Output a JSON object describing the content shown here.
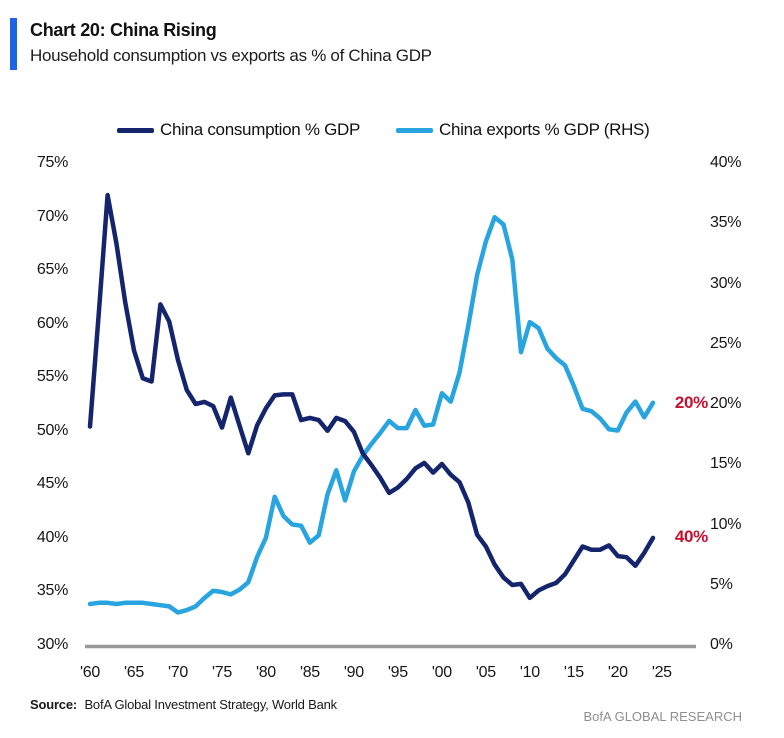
{
  "header": {
    "title": "Chart 20: China Rising",
    "subtitle": "Household consumption vs exports as % of China GDP",
    "accent_color": "#1b63e0"
  },
  "legend": {
    "items": [
      {
        "label": "China consumption % GDP",
        "color": "#15256d"
      },
      {
        "label": "China exports % GDP (RHS)",
        "color": "#28a4e0"
      }
    ]
  },
  "chart_data": {
    "type": "line",
    "title": "Chart 20: China Rising",
    "subtitle": "Household consumption vs exports as % of China GDP",
    "x": [
      1960,
      1961,
      1962,
      1963,
      1964,
      1965,
      1966,
      1967,
      1968,
      1969,
      1970,
      1971,
      1972,
      1973,
      1974,
      1975,
      1976,
      1977,
      1978,
      1979,
      1980,
      1981,
      1982,
      1983,
      1984,
      1985,
      1986,
      1987,
      1988,
      1989,
      1990,
      1991,
      1992,
      1993,
      1994,
      1995,
      1996,
      1997,
      1998,
      1999,
      2000,
      2001,
      2002,
      2003,
      2004,
      2005,
      2006,
      2007,
      2008,
      2009,
      2010,
      2011,
      2012,
      2013,
      2014,
      2015,
      2016,
      2017,
      2018,
      2019,
      2020,
      2021,
      2022,
      2023,
      2024
    ],
    "x_tick_years": [
      1960,
      1965,
      1970,
      1975,
      1980,
      1985,
      1990,
      1995,
      2000,
      2005,
      2010,
      2015,
      2020,
      2025
    ],
    "x_tick_labels": [
      "'60",
      "'65",
      "'70",
      "'75",
      "'80",
      "'85",
      "'90",
      "'95",
      "'00",
      "'05",
      "'10",
      "'15",
      "'20",
      "'25"
    ],
    "left_axis": {
      "ticks": [
        75,
        70,
        65,
        60,
        55,
        50,
        45,
        40,
        35,
        30
      ],
      "ylim": [
        30,
        75
      ],
      "unit": "%"
    },
    "right_axis": {
      "ticks": [
        40,
        35,
        30,
        25,
        20,
        15,
        10,
        5,
        0
      ],
      "ylim": [
        0,
        40
      ],
      "unit": "%"
    },
    "grid": false,
    "legend_position": "top",
    "series": [
      {
        "name": "China consumption % GDP",
        "axis": "left",
        "color": "#15256d",
        "values": [
          50.4,
          61.0,
          72.0,
          67.5,
          62.0,
          57.5,
          54.9,
          54.6,
          61.8,
          60.2,
          56.6,
          53.8,
          52.5,
          52.7,
          52.3,
          50.3,
          53.1,
          50.5,
          47.9,
          50.5,
          52.1,
          53.3,
          53.4,
          53.4,
          51.0,
          51.2,
          51.0,
          50.0,
          51.2,
          50.9,
          49.9,
          47.9,
          46.8,
          45.6,
          44.2,
          44.7,
          45.5,
          46.5,
          47.0,
          46.1,
          46.9,
          45.9,
          45.2,
          43.3,
          40.3,
          39.2,
          37.5,
          36.3,
          35.6,
          35.7,
          34.4,
          35.1,
          35.5,
          35.8,
          36.6,
          37.9,
          39.2,
          38.9,
          38.9,
          39.3,
          38.3,
          38.2,
          37.4,
          38.6,
          40.0
        ]
      },
      {
        "name": "China exports % GDP (RHS)",
        "axis": "right",
        "color": "#28a4e0",
        "values": [
          3.4,
          3.5,
          3.5,
          3.4,
          3.5,
          3.5,
          3.5,
          3.4,
          3.3,
          3.2,
          2.7,
          2.9,
          3.2,
          3.9,
          4.5,
          4.4,
          4.2,
          4.6,
          5.2,
          7.3,
          8.9,
          12.3,
          10.7,
          10.0,
          9.9,
          8.5,
          9.1,
          12.5,
          14.5,
          12.0,
          14.4,
          15.7,
          16.7,
          17.6,
          18.6,
          18.0,
          18.0,
          19.5,
          18.2,
          18.3,
          20.9,
          20.2,
          22.6,
          26.5,
          30.7,
          33.5,
          35.5,
          34.9,
          32.0,
          24.3,
          26.8,
          26.3,
          24.6,
          23.8,
          23.2,
          21.5,
          19.6,
          19.4,
          18.8,
          17.9,
          17.8,
          19.3,
          20.2,
          18.9,
          20.1
        ]
      }
    ],
    "annotations": [
      {
        "text": "20%",
        "axis": "right",
        "value": 20,
        "color": "#c8102e"
      },
      {
        "text": "40%",
        "axis": "left",
        "value": 40,
        "color": "#c8102e"
      }
    ],
    "axis_line_color": "#999999"
  },
  "footer": {
    "source_label": "Source:",
    "source_text": "BofA Global Investment Strategy, World Bank",
    "brand": "BofA GLOBAL RESEARCH"
  }
}
